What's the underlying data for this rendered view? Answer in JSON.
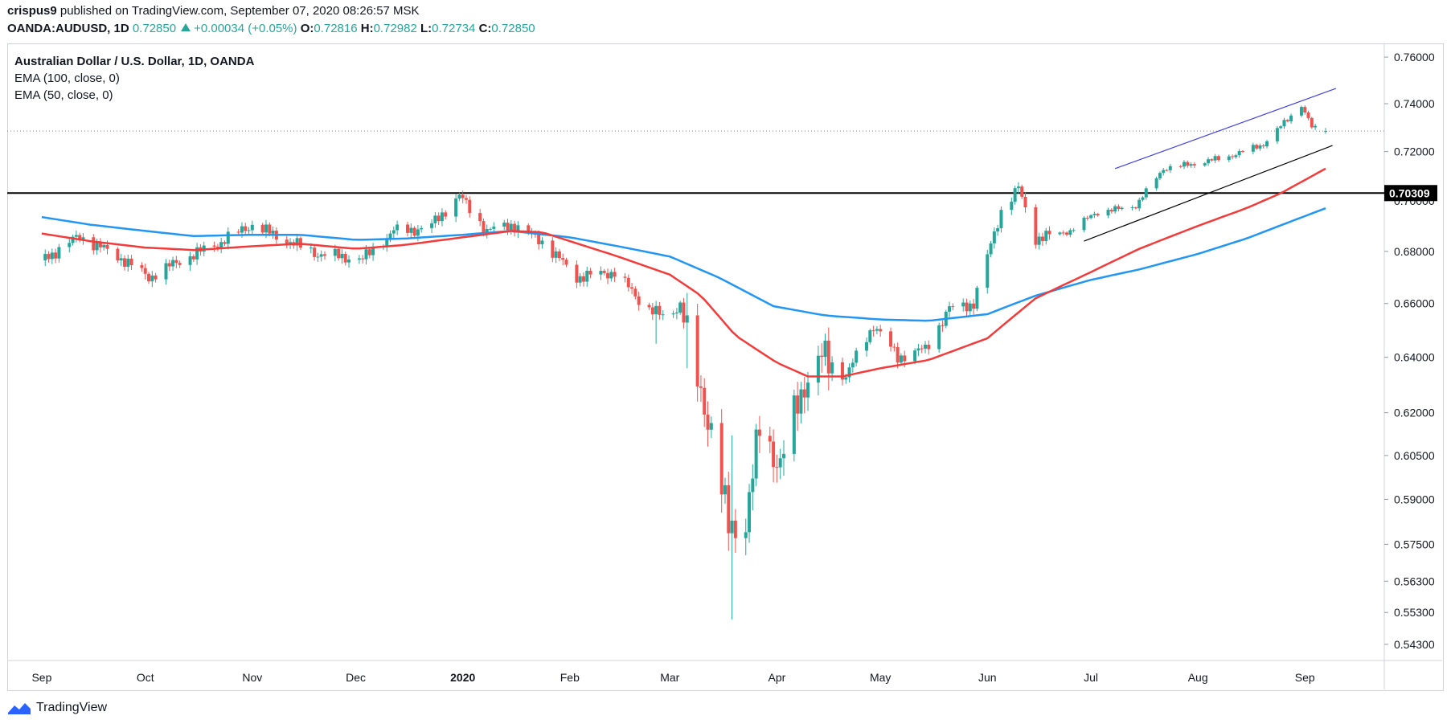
{
  "header": {
    "author": "crispus9",
    "published_text": "published on TradingView.com, September 07, 2020 08:26:57 MSK",
    "symbol": "OANDA:AUDUSD, 1D",
    "last": "0.72850",
    "change": "+0.00034 (+0.05%)",
    "o_label": "O:",
    "o": "0.72816",
    "h_label": "H:",
    "h": "0.72982",
    "l_label": "L:",
    "l": "0.72734",
    "c_label": "C:",
    "c": "0.72850"
  },
  "legend": {
    "title": "Australian Dollar / U.S. Dollar, 1D, OANDA",
    "ema1": "EMA (100, close, 0)",
    "ema2": "EMA (50, close, 0)"
  },
  "footer": {
    "brand": "TradingView",
    "icon": "tradingview-logo-icon"
  },
  "colors": {
    "up": "#26a69a",
    "down": "#ef5350",
    "ema100": "#2196f3",
    "ema50": "#f23b3b",
    "hline": "#000000",
    "upper_trend": "#3f3fe0",
    "lower_trend": "#000000",
    "last_price": "#26a69a"
  },
  "chart_data": {
    "type": "candlestick",
    "title": "Australian Dollar / U.S. Dollar, 1D, OANDA",
    "y_axis_ticks": [
      "0.76000",
      "0.74000",
      "0.72000",
      "0.70000",
      "0.68000",
      "0.66000",
      "0.64000",
      "0.62000",
      "0.60500",
      "0.59000",
      "0.57500",
      "0.56300",
      "0.55300",
      "0.54300"
    ],
    "x_axis_labels": [
      "Sep",
      "Oct",
      "Nov",
      "Dec",
      "2020",
      "Feb",
      "Mar",
      "Apr",
      "May",
      "Jun",
      "Jul",
      "Aug",
      "Sep"
    ],
    "ylim": [
      0.538,
      0.766
    ],
    "horizontal_level": {
      "value": 0.70309,
      "label": "0.70309"
    },
    "last_price": 0.7285,
    "anchors": [
      [
        "2019-09-01",
        0.6765
      ],
      [
        "2019-09-12",
        0.686
      ],
      [
        "2019-09-25",
        0.6765
      ],
      [
        "2019-10-02",
        0.67
      ],
      [
        "2019-10-12",
        0.677
      ],
      [
        "2019-10-22",
        0.683
      ],
      [
        "2019-11-01",
        0.6905
      ],
      [
        "2019-11-08",
        0.686
      ],
      [
        "2019-11-20",
        0.679
      ],
      [
        "2019-12-03",
        0.677
      ],
      [
        "2019-12-12",
        0.688
      ],
      [
        "2019-12-22",
        0.689
      ],
      [
        "2019-12-31",
        0.702
      ],
      [
        "2020-01-08",
        0.688
      ],
      [
        "2020-01-15",
        0.6905
      ],
      [
        "2020-01-24",
        0.684
      ],
      [
        "2020-02-03",
        0.67
      ],
      [
        "2020-02-14",
        0.672
      ],
      [
        "2020-02-22",
        0.66
      ],
      [
        "2020-02-29",
        0.654
      ],
      [
        "2020-03-04",
        0.66
      ],
      [
        "2020-03-09",
        0.63
      ],
      [
        "2020-03-13",
        0.615
      ],
      [
        "2020-03-18",
        0.58
      ],
      [
        "2020-03-23",
        0.583
      ],
      [
        "2020-03-27",
        0.614
      ],
      [
        "2020-04-02",
        0.602
      ],
      [
        "2020-04-09",
        0.631
      ],
      [
        "2020-04-14",
        0.64
      ],
      [
        "2020-04-21",
        0.633
      ],
      [
        "2020-04-29",
        0.652
      ],
      [
        "2020-05-06",
        0.64
      ],
      [
        "2020-05-14",
        0.643
      ],
      [
        "2020-05-21",
        0.658
      ],
      [
        "2020-05-28",
        0.66
      ],
      [
        "2020-06-05",
        0.696
      ],
      [
        "2020-06-10",
        0.705
      ],
      [
        "2020-06-15",
        0.685
      ],
      [
        "2020-06-25",
        0.688
      ],
      [
        "2020-07-02",
        0.695
      ],
      [
        "2020-07-14",
        0.698
      ],
      [
        "2020-07-22",
        0.713
      ],
      [
        "2020-07-31",
        0.715
      ],
      [
        "2020-08-10",
        0.718
      ],
      [
        "2020-08-20",
        0.723
      ],
      [
        "2020-08-31",
        0.7395
      ],
      [
        "2020-09-03",
        0.73
      ],
      [
        "2020-09-07",
        0.7285
      ]
    ],
    "ema50_anchors": [
      [
        "2019-09-01",
        0.687
      ],
      [
        "2019-09-15",
        0.684
      ],
      [
        "2019-10-01",
        0.6815
      ],
      [
        "2019-10-15",
        0.6805
      ],
      [
        "2019-11-01",
        0.682
      ],
      [
        "2019-11-15",
        0.683
      ],
      [
        "2019-12-01",
        0.681
      ],
      [
        "2019-12-15",
        0.6825
      ],
      [
        "2020-01-01",
        0.6855
      ],
      [
        "2020-01-15",
        0.688
      ],
      [
        "2020-01-24",
        0.6875
      ],
      [
        "2020-02-01",
        0.684
      ],
      [
        "2020-02-15",
        0.678
      ],
      [
        "2020-03-01",
        0.671
      ],
      [
        "2020-03-10",
        0.663
      ],
      [
        "2020-03-20",
        0.648
      ],
      [
        "2020-04-01",
        0.638
      ],
      [
        "2020-04-10",
        0.633
      ],
      [
        "2020-04-20",
        0.633
      ],
      [
        "2020-05-01",
        0.636
      ],
      [
        "2020-05-15",
        0.639
      ],
      [
        "2020-06-01",
        0.647
      ],
      [
        "2020-06-15",
        0.662
      ],
      [
        "2020-07-01",
        0.672
      ],
      [
        "2020-07-15",
        0.681
      ],
      [
        "2020-08-01",
        0.69
      ],
      [
        "2020-08-15",
        0.697
      ],
      [
        "2020-08-25",
        0.703
      ],
      [
        "2020-09-07",
        0.713
      ]
    ],
    "ema100_anchors": [
      [
        "2019-09-01",
        0.6935
      ],
      [
        "2019-09-15",
        0.6905
      ],
      [
        "2019-10-01",
        0.688
      ],
      [
        "2019-10-15",
        0.686
      ],
      [
        "2019-11-01",
        0.6865
      ],
      [
        "2019-11-15",
        0.6865
      ],
      [
        "2019-12-01",
        0.6845
      ],
      [
        "2019-12-15",
        0.685
      ],
      [
        "2020-01-01",
        0.6865
      ],
      [
        "2020-01-15",
        0.688
      ],
      [
        "2020-02-01",
        0.6855
      ],
      [
        "2020-02-15",
        0.682
      ],
      [
        "2020-03-01",
        0.678
      ],
      [
        "2020-03-15",
        0.67
      ],
      [
        "2020-03-31",
        0.659
      ],
      [
        "2020-04-15",
        0.6555
      ],
      [
        "2020-05-01",
        0.654
      ],
      [
        "2020-05-15",
        0.6535
      ],
      [
        "2020-06-01",
        0.656
      ],
      [
        "2020-06-15",
        0.663
      ],
      [
        "2020-07-01",
        0.669
      ],
      [
        "2020-07-15",
        0.673
      ],
      [
        "2020-08-01",
        0.679
      ],
      [
        "2020-08-15",
        0.685
      ],
      [
        "2020-09-07",
        0.697
      ]
    ],
    "trendlines": [
      {
        "name": "upper",
        "from": [
          "2020-07-08",
          0.713
        ],
        "to": [
          "2020-09-10",
          0.7465
        ]
      },
      {
        "name": "lower",
        "from": [
          "2020-06-29",
          0.684
        ],
        "to": [
          "2020-09-09",
          0.7225
        ]
      }
    ],
    "spikes": [
      {
        "date": "2020-03-19",
        "low": 0.5508,
        "high": 0.612
      },
      {
        "date": "2020-03-06",
        "low": 0.636,
        "high": 0.664
      },
      {
        "date": "2020-02-26",
        "low": 0.645,
        "high": 0.661
      }
    ]
  }
}
